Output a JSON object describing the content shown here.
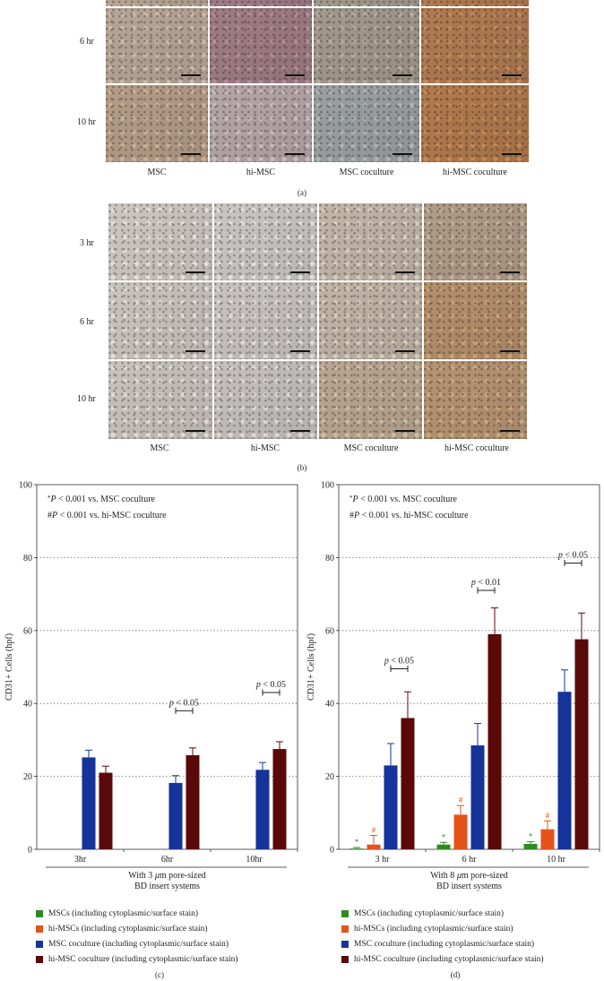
{
  "panel_a": {
    "label": "(a)",
    "rows": [
      "6 hr",
      "10 hr"
    ],
    "columns": [
      "MSC",
      "hi-MSC",
      "MSC coculture",
      "hi-MSC coculture"
    ],
    "tile_colors": [
      [
        "#b7a596",
        "#9f7c86",
        "#a29a8c",
        "#b07b52"
      ],
      [
        "#b49d87",
        "#b5a6a9",
        "#9ba0a0",
        "#b17a4d"
      ]
    ]
  },
  "panel_b": {
    "label": "(b)",
    "rows": [
      "3 hr",
      "6 hr",
      "10 hr"
    ],
    "columns": [
      "MSC",
      "hi-MSC",
      "MSC coculture",
      "hi-MSC coculture"
    ],
    "tile_colors": [
      [
        "#cdc7c2",
        "#cac6c3",
        "#c2b6a8",
        "#b09c88"
      ],
      [
        "#cac4bf",
        "#c8c3c0",
        "#c0b4a6",
        "#b38f6c"
      ],
      [
        "#c9c2bc",
        "#c5c0bd",
        "#b9a690",
        "#b59473"
      ]
    ]
  },
  "colors": {
    "msc": "#2e8b22",
    "hi_msc": "#e4531a",
    "msc_coculture": "#16339a",
    "hi_msc_coculture": "#5a0909"
  },
  "chart_data": [
    {
      "panel_label": "(c)",
      "type": "bar",
      "ylabel": "CD31+ Cells (hpf)",
      "ylim": [
        0,
        100
      ],
      "yticks": [
        0,
        20,
        40,
        60,
        80,
        100
      ],
      "categories": [
        "3hr",
        "6hr",
        "10hr"
      ],
      "xlabel_lines": [
        "With 3 μm pore-sized",
        "BD insert systems"
      ],
      "notes": [
        "*P < 0.001 vs. MSC coculture",
        "#P < 0.001 vs. hi-MSC coculture"
      ],
      "series": [
        {
          "name": "MSCs (including cytoplasmic/surface stain)",
          "values": [
            0,
            0,
            0
          ],
          "errors": [
            0,
            0,
            0
          ]
        },
        {
          "name": "hi-MSCs (including cytoplasmic/surface stain)",
          "values": [
            0,
            0,
            0
          ],
          "errors": [
            0,
            0,
            0
          ]
        },
        {
          "name": "MSC coculture (including cytoplasmic/surface stain)",
          "values": [
            25.2,
            18.2,
            21.8
          ],
          "errors": [
            2.0,
            2.0,
            2.0
          ]
        },
        {
          "name": "hi-MSC coculture (including cytoplasmic/surface stain)",
          "values": [
            21.0,
            25.8,
            27.5
          ],
          "errors": [
            1.8,
            2.0,
            2.0
          ]
        }
      ],
      "annotations": [
        {
          "category": 1,
          "text": "p < 0.05",
          "bracket_y": 38
        },
        {
          "category": 2,
          "text": "p < 0.05",
          "bracket_y": 43
        }
      ],
      "markers": []
    },
    {
      "panel_label": "(d)",
      "type": "bar",
      "ylabel": "CD31+ Cells (hpf)",
      "ylim": [
        0,
        100
      ],
      "yticks": [
        0,
        20,
        40,
        60,
        80,
        100
      ],
      "categories": [
        "3 hr",
        "6 hr",
        "10 hr"
      ],
      "xlabel_lines": [
        "With 8 μm pore-sized",
        "BD insert systems"
      ],
      "notes": [
        "*P < 0.001 vs. MSC coculture",
        "#P < 0.001 vs. hi-MSC coculture"
      ],
      "series": [
        {
          "name": "MSCs (including cytoplasmic/surface stain)",
          "values": [
            0.2,
            1.3,
            1.5
          ],
          "errors": [
            0.3,
            0.6,
            0.6
          ]
        },
        {
          "name": "hi-MSCs (including cytoplasmic/surface stain)",
          "values": [
            1.3,
            9.5,
            5.5
          ],
          "errors": [
            2.5,
            2.5,
            2.3
          ]
        },
        {
          "name": "MSC coculture (including cytoplasmic/surface stain)",
          "values": [
            23.0,
            28.5,
            43.2
          ],
          "errors": [
            6.0,
            6.0,
            6.0
          ]
        },
        {
          "name": "hi-MSC coculture (including cytoplasmic/surface stain)",
          "values": [
            36.0,
            59.0,
            57.6
          ],
          "errors": [
            7.2,
            7.2,
            7.2
          ]
        }
      ],
      "annotations": [
        {
          "category": 0,
          "text": "p < 0.05",
          "bracket_y": 49.5
        },
        {
          "category": 1,
          "text": "p < 0.01",
          "bracket_y": 71
        },
        {
          "category": 2,
          "text": "p < 0.05",
          "bracket_y": 78.5
        }
      ],
      "markers": [
        {
          "series": 0,
          "category": 0,
          "symbol": "*"
        },
        {
          "series": 1,
          "category": 0,
          "symbol": "#"
        },
        {
          "series": 0,
          "category": 1,
          "symbol": "*"
        },
        {
          "series": 1,
          "category": 1,
          "symbol": "#"
        },
        {
          "series": 0,
          "category": 2,
          "symbol": "*"
        },
        {
          "series": 1,
          "category": 2,
          "symbol": "#"
        }
      ]
    }
  ]
}
